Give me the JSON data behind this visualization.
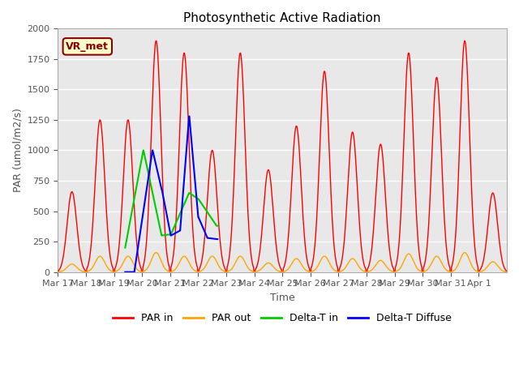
{
  "title": "Photosynthetic Active Radiation",
  "ylabel": "PAR (umol/m2/s)",
  "xlabel": "Time",
  "ylim": [
    0,
    2000
  ],
  "bg_color": "#e8e8e8",
  "fig_color": "#ffffff",
  "label_color": "#555555",
  "grid_color": "#ffffff",
  "colors": {
    "par_in": "#ff0000",
    "par_out": "#ffa500",
    "delta_t_in": "#00cc00",
    "delta_t_diffuse": "#0000ff"
  },
  "legend_labels": [
    "PAR in",
    "PAR out",
    "Delta-T in",
    "Delta-T Diffuse"
  ],
  "vr_met_label": "VR_met",
  "vr_met_bg": "#ffffcc",
  "vr_met_border": "#8b0000",
  "xtick_labels": [
    "Mar 17",
    "Mar 18",
    "Mar 19",
    "Mar 20",
    "Mar 21",
    "Mar 22",
    "Mar 23",
    "Mar 24",
    "Mar 25",
    "Mar 26",
    "Mar 27",
    "Mar 28",
    "Mar 29",
    "Mar 30",
    "Mar 31",
    "Apr 1"
  ],
  "n_days": 16,
  "pts_per_day": 144,
  "par_in_peaks": [
    660,
    1250,
    1250,
    1900,
    1800,
    1000,
    1800,
    840,
    1200,
    1650,
    1150,
    1050,
    1800,
    1600,
    1900,
    650
  ],
  "par_out_peaks": [
    65,
    130,
    130,
    160,
    130,
    130,
    130,
    75,
    110,
    130,
    110,
    95,
    150,
    130,
    160,
    85
  ]
}
